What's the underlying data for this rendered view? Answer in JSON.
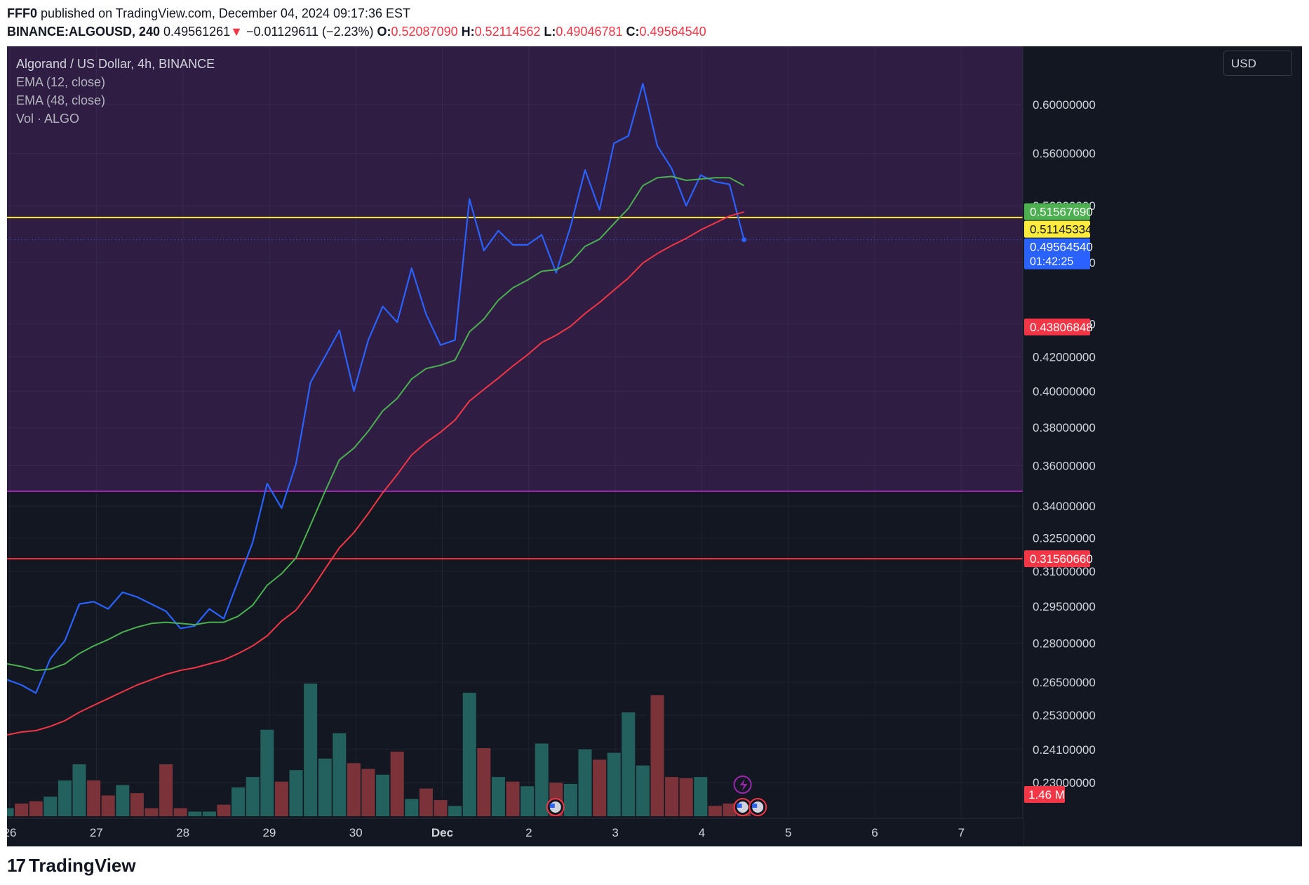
{
  "header": {
    "line1": {
      "author": "FFF0",
      "text": "published on TradingView.com, December 04, 2024 09:17:36 EST"
    },
    "line2": {
      "symbol": "BINANCE:ALGOUSD, 240",
      "price": "0.49561261",
      "arrow": "▼",
      "change": "−0.01129611 (−2.23%)",
      "o_label": "O:",
      "o": "0.52087090",
      "h_label": "H:",
      "h": "0.52114562",
      "l_label": "L:",
      "l": "0.49046781",
      "c_label": "C:",
      "c": "0.49564540"
    }
  },
  "legend": {
    "title": "Algorand / US Dollar, 4h, BINANCE",
    "ema12": "EMA (12, close)",
    "ema48": "EMA (48, close)",
    "vol": "Vol · ALGO"
  },
  "currency": "USD",
  "footer": {
    "logo_mark": "17",
    "logo_text": "TradingView"
  },
  "colors": {
    "background": "#131722",
    "zone": "#2f1d44",
    "price_line": "#2962ff",
    "ema12": "#4caf50",
    "ema48": "#f23645",
    "yellow_line": "#ffeb3b",
    "purple_line": "#9c27b0",
    "red_line": "#f23645",
    "vol_up": "#22615d",
    "vol_down": "#7b3339"
  },
  "chart_data": {
    "type": "line",
    "title": "Algorand / US Dollar, 4h, BINANCE",
    "x_tick_labels": [
      "26",
      "27",
      "28",
      "29",
      "30",
      "Dec",
      "2",
      "3",
      "4",
      "5",
      "6",
      "7"
    ],
    "y_tick_labels": [
      "0.60000000",
      "0.56000000",
      "0.52000000",
      "0.48000000",
      "0.44000000",
      "0.42000000",
      "0.40000000",
      "0.38000000",
      "0.36000000",
      "0.34000000",
      "0.32500000",
      "0.31000000",
      "0.29500000",
      "0.28000000",
      "0.26500000",
      "0.25300000",
      "0.24100000",
      "0.23000000"
    ],
    "y_scale": "log",
    "ylim": [
      0.223,
      0.64
    ],
    "grid": true,
    "series": [
      {
        "name": "ALGOUSD",
        "values": [
          0.266,
          0.264,
          0.261,
          0.274,
          0.281,
          0.296,
          0.297,
          0.294,
          0.301,
          0.299,
          0.296,
          0.293,
          0.286,
          0.287,
          0.294,
          0.29,
          0.306,
          0.323,
          0.351,
          0.339,
          0.361,
          0.405,
          0.42,
          0.436,
          0.4,
          0.43,
          0.451,
          0.441,
          0.476,
          0.446,
          0.427,
          0.43,
          0.525,
          0.488,
          0.502,
          0.492,
          0.492,
          0.499,
          0.473,
          0.505,
          0.547,
          0.517,
          0.568,
          0.574,
          0.618,
          0.566,
          0.548,
          0.52,
          0.543,
          0.538,
          0.536,
          0.4956
        ]
      },
      {
        "name": "EMA (12, close)",
        "values": [
          0.272,
          0.271,
          0.2695,
          0.27,
          0.272,
          0.276,
          0.279,
          0.2815,
          0.2845,
          0.2865,
          0.288,
          0.2885,
          0.288,
          0.2875,
          0.2885,
          0.2885,
          0.291,
          0.2955,
          0.304,
          0.309,
          0.316,
          0.331,
          0.347,
          0.363,
          0.369,
          0.378,
          0.389,
          0.396,
          0.407,
          0.413,
          0.415,
          0.418,
          0.435,
          0.443,
          0.455,
          0.463,
          0.468,
          0.474,
          0.475,
          0.48,
          0.491,
          0.496,
          0.507,
          0.518,
          0.535,
          0.541,
          0.542,
          0.539,
          0.54,
          0.541,
          0.541,
          0.535
        ]
      },
      {
        "name": "EMA (48, close)",
        "values": [
          0.246,
          0.247,
          0.2475,
          0.249,
          0.251,
          0.254,
          0.2565,
          0.259,
          0.2615,
          0.264,
          0.266,
          0.268,
          0.2695,
          0.2705,
          0.272,
          0.2735,
          0.276,
          0.279,
          0.283,
          0.289,
          0.2935,
          0.3015,
          0.311,
          0.3205,
          0.3275,
          0.3365,
          0.3465,
          0.3555,
          0.3655,
          0.372,
          0.3775,
          0.384,
          0.3945,
          0.401,
          0.4075,
          0.4145,
          0.421,
          0.4285,
          0.433,
          0.4385,
          0.4465,
          0.4535,
          0.4615,
          0.4695,
          0.4795,
          0.486,
          0.4915,
          0.4965,
          0.5025,
          0.5075,
          0.5125,
          0.5155
        ]
      }
    ],
    "volume": {
      "name": "Vol · ALGO",
      "values": [
        0.07,
        0.11,
        0.13,
        0.17,
        0.31,
        0.45,
        0.31,
        0.18,
        0.27,
        0.2,
        0.07,
        0.45,
        0.07,
        0.04,
        0.04,
        0.1,
        0.25,
        0.34,
        0.75,
        0.3,
        0.4,
        1.15,
        0.5,
        0.72,
        0.46,
        0.41,
        0.36,
        0.56,
        0.15,
        0.24,
        0.14,
        0.09,
        1.07,
        0.59,
        0.34,
        0.3,
        0.26,
        0.63,
        0.29,
        0.28,
        0.58,
        0.49,
        0.55,
        0.9,
        0.44,
        1.05,
        0.34,
        0.33,
        0.34,
        0.09,
        0.11,
        0.03
      ],
      "direction": [
        "up",
        "down",
        "down",
        "up",
        "up",
        "up",
        "down",
        "down",
        "up",
        "down",
        "down",
        "down",
        "down",
        "up",
        "up",
        "down",
        "up",
        "up",
        "up",
        "down",
        "up",
        "up",
        "up",
        "up",
        "down",
        "down",
        "up",
        "down",
        "up",
        "down",
        "down",
        "up",
        "up",
        "down",
        "up",
        "down",
        "up",
        "up",
        "down",
        "up",
        "up",
        "down",
        "up",
        "up",
        "up",
        "down",
        "down",
        "down",
        "up",
        "down",
        "down",
        "down"
      ],
      "last_label": "1.46 M"
    },
    "horizontal_lines": [
      {
        "value": 0.51145334,
        "label": "0.51145334",
        "color": "#ffeb3b"
      },
      {
        "value": 0.3472,
        "label": "",
        "color": "#9c27b0"
      },
      {
        "value": 0.3156066,
        "label": "0.31560660",
        "color": "#f23645"
      }
    ],
    "zone": {
      "from": 0.3472,
      "to": 0.64
    },
    "price_labels": [
      {
        "value": 0.5156769,
        "label": "0.51567690",
        "color": "#4caf50",
        "text_color": "#ffffff"
      },
      {
        "value": 0.51145334,
        "label": "0.51145334",
        "color": "#ffeb3b",
        "text_color": "#131722"
      },
      {
        "value": 0.4956454,
        "label": "0.49564540",
        "sub": "01:42:25",
        "color": "#2962ff",
        "text_color": "#ffffff"
      },
      {
        "value": 0.43806848,
        "label": "0.43806848",
        "color": "#f23645",
        "text_color": "#ffffff"
      },
      {
        "value": 0.3156066,
        "label": "0.31560660",
        "color": "#f23645",
        "text_color": "#ffffff"
      }
    ]
  }
}
